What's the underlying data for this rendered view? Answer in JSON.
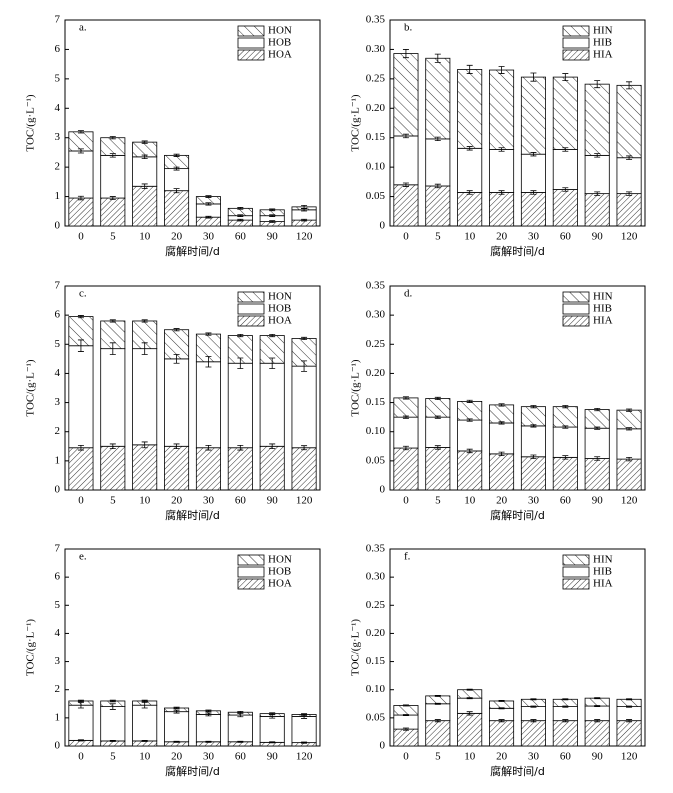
{
  "chart_data": [
    {
      "type": "bar",
      "stacked": true,
      "label": "a.",
      "xlabel": "腐解时间/d",
      "ylabel": "TOC/(g·L⁻¹)",
      "categories": [
        "0",
        "5",
        "10",
        "20",
        "30",
        "60",
        "90",
        "120"
      ],
      "ylim": [
        0,
        7
      ],
      "yticks": [
        0,
        1,
        2,
        3,
        4,
        5,
        6,
        7
      ],
      "legend": "upper right",
      "series": [
        {
          "name": "HOA",
          "color": "#000000",
          "hatch": "forward",
          "values": [
            0.95,
            0.95,
            1.35,
            1.2,
            0.3,
            0.2,
            0.15,
            0.2
          ],
          "errors": [
            0.06,
            0.05,
            0.08,
            0.07,
            0.03,
            0.03,
            0.03,
            0.03
          ]
        },
        {
          "name": "HOB",
          "color": "#000000",
          "hatch": "none",
          "values": [
            1.6,
            1.45,
            1.0,
            0.75,
            0.45,
            0.15,
            0.2,
            0.35
          ],
          "errors": [
            0.07,
            0.06,
            0.06,
            0.05,
            0.04,
            0.03,
            0.03,
            0.04
          ]
        },
        {
          "name": "HON",
          "color": "#000000",
          "hatch": "back",
          "values": [
            0.65,
            0.6,
            0.5,
            0.45,
            0.25,
            0.25,
            0.2,
            0.1
          ],
          "errors": [
            0.04,
            0.04,
            0.04,
            0.04,
            0.03,
            0.03,
            0.03,
            0.05
          ]
        }
      ]
    },
    {
      "type": "bar",
      "stacked": true,
      "label": "b.",
      "xlabel": "腐解时间/d",
      "ylabel": "TOC/(g·L⁻¹)",
      "categories": [
        "0",
        "5",
        "10",
        "20",
        "30",
        "60",
        "90",
        "120"
      ],
      "ylim": [
        0,
        0.35
      ],
      "yticks": [
        0,
        0.05,
        {
          "value": 0.1,
          "label": "0.10"
        },
        0.15,
        {
          "value": 0.2,
          "label": "0.20"
        },
        0.25,
        {
          "value": 0.3,
          "label": "0.30"
        },
        0.35
      ],
      "legend": "upper right",
      "series": [
        {
          "name": "HIA",
          "color": "#000000",
          "hatch": "forward",
          "values": [
            0.07,
            0.068,
            0.057,
            0.057,
            0.057,
            0.062,
            0.055,
            0.055
          ],
          "errors": [
            0.003,
            0.003,
            0.003,
            0.003,
            0.003,
            0.003,
            0.003,
            0.003
          ]
        },
        {
          "name": "HIB",
          "color": "#000000",
          "hatch": "none",
          "values": [
            0.083,
            0.08,
            0.075,
            0.073,
            0.065,
            0.068,
            0.065,
            0.061
          ],
          "errors": [
            0.003,
            0.003,
            0.003,
            0.003,
            0.003,
            0.003,
            0.003,
            0.003
          ]
        },
        {
          "name": "HIN",
          "color": "#000000",
          "hatch": "back",
          "values": [
            0.14,
            0.137,
            0.134,
            0.135,
            0.131,
            0.123,
            0.121,
            0.123
          ],
          "errors": [
            0.007,
            0.007,
            0.007,
            0.006,
            0.007,
            0.006,
            0.006,
            0.006
          ]
        }
      ]
    },
    {
      "type": "bar",
      "stacked": true,
      "label": "c.",
      "xlabel": "腐解时间/d",
      "ylabel": "TOC/(g·L⁻¹)",
      "categories": [
        "0",
        "5",
        "10",
        "20",
        "30",
        "60",
        "90",
        "120"
      ],
      "ylim": [
        0,
        7
      ],
      "yticks": [
        0,
        1,
        2,
        3,
        4,
        5,
        6,
        7
      ],
      "legend": "upper right",
      "series": [
        {
          "name": "HOA",
          "color": "#000000",
          "hatch": "forward",
          "values": [
            1.45,
            1.5,
            1.55,
            1.5,
            1.45,
            1.45,
            1.5,
            1.45
          ],
          "errors": [
            0.08,
            0.08,
            0.1,
            0.08,
            0.08,
            0.08,
            0.08,
            0.07
          ]
        },
        {
          "name": "HOB",
          "color": "#000000",
          "hatch": "none",
          "values": [
            3.5,
            3.35,
            3.3,
            3.0,
            2.95,
            2.9,
            2.85,
            2.8
          ],
          "errors": [
            0.2,
            0.2,
            0.2,
            0.15,
            0.18,
            0.18,
            0.18,
            0.18
          ]
        },
        {
          "name": "HON",
          "color": "#000000",
          "hatch": "back",
          "values": [
            1.0,
            0.95,
            0.95,
            1.0,
            0.95,
            0.95,
            0.95,
            0.95
          ],
          "errors": [
            0.04,
            0.04,
            0.04,
            0.04,
            0.04,
            0.04,
            0.04,
            0.04
          ]
        }
      ]
    },
    {
      "type": "bar",
      "stacked": true,
      "label": "d.",
      "xlabel": "腐解时间/d",
      "ylabel": "TOC/(g·L⁻¹)",
      "categories": [
        "0",
        "5",
        "10",
        "20",
        "30",
        "60",
        "90",
        "120"
      ],
      "ylim": [
        0,
        0.35
      ],
      "yticks": [
        0,
        0.05,
        {
          "value": 0.1,
          "label": "0.10"
        },
        0.15,
        {
          "value": 0.2,
          "label": "0.20"
        },
        0.25,
        {
          "value": 0.3,
          "label": "0.30"
        },
        0.35
      ],
      "legend": "upper right",
      "series": [
        {
          "name": "HIA",
          "color": "#000000",
          "hatch": "forward",
          "values": [
            0.072,
            0.073,
            0.067,
            0.062,
            0.057,
            0.056,
            0.054,
            0.053
          ],
          "errors": [
            0.003,
            0.003,
            0.003,
            0.003,
            0.003,
            0.003,
            0.003,
            0.003
          ]
        },
        {
          "name": "HIB",
          "color": "#000000",
          "hatch": "none",
          "values": [
            0.053,
            0.052,
            0.053,
            0.053,
            0.053,
            0.052,
            0.052,
            0.052
          ],
          "errors": [
            0.002,
            0.002,
            0.002,
            0.002,
            0.002,
            0.002,
            0.002,
            0.002
          ]
        },
        {
          "name": "HIN",
          "color": "#000000",
          "hatch": "back",
          "values": [
            0.033,
            0.032,
            0.032,
            0.031,
            0.033,
            0.035,
            0.032,
            0.032
          ],
          "errors": [
            0.002,
            0.002,
            0.002,
            0.002,
            0.002,
            0.002,
            0.002,
            0.002
          ]
        }
      ]
    },
    {
      "type": "bar",
      "stacked": true,
      "label": "e.",
      "xlabel": "腐解时间/d",
      "ylabel": "TOC/(g·L⁻¹)",
      "categories": [
        "0",
        "5",
        "10",
        "20",
        "30",
        "60",
        "90",
        "120"
      ],
      "ylim": [
        0,
        7
      ],
      "yticks": [
        0,
        1,
        2,
        3,
        4,
        5,
        6,
        7
      ],
      "legend": "upper right",
      "series": [
        {
          "name": "HOA",
          "color": "#000000",
          "hatch": "forward",
          "values": [
            0.2,
            0.18,
            0.18,
            0.15,
            0.15,
            0.15,
            0.13,
            0.12
          ],
          "errors": [
            0.02,
            0.02,
            0.02,
            0.02,
            0.02,
            0.02,
            0.02,
            0.02
          ]
        },
        {
          "name": "HOB",
          "color": "#000000",
          "hatch": "none",
          "values": [
            1.25,
            1.22,
            1.27,
            1.07,
            0.97,
            0.95,
            0.92,
            0.93
          ],
          "errors": [
            0.1,
            0.1,
            0.1,
            0.05,
            0.05,
            0.06,
            0.06,
            0.07
          ]
        },
        {
          "name": "HON",
          "color": "#000000",
          "hatch": "back",
          "values": [
            0.15,
            0.2,
            0.15,
            0.13,
            0.13,
            0.1,
            0.1,
            0.07
          ],
          "errors": [
            0.03,
            0.03,
            0.03,
            0.03,
            0.03,
            0.03,
            0.03,
            0.03
          ]
        }
      ]
    },
    {
      "type": "bar",
      "stacked": true,
      "label": "f.",
      "xlabel": "腐解时间/d",
      "ylabel": "TOC/(g·L⁻¹)",
      "categories": [
        "0",
        "5",
        "10",
        "20",
        "30",
        "60",
        "90",
        "120"
      ],
      "ylim": [
        0,
        0.35
      ],
      "yticks": [
        0,
        0.05,
        {
          "value": 0.1,
          "label": "0.10"
        },
        0.15,
        {
          "value": 0.2,
          "label": "0.20"
        },
        0.25,
        {
          "value": 0.3,
          "label": "0.30"
        },
        0.35
      ],
      "legend": "upper right",
      "series": [
        {
          "name": "HIA",
          "color": "#000000",
          "hatch": "forward",
          "values": [
            0.03,
            0.045,
            0.058,
            0.045,
            0.045,
            0.045,
            0.045,
            0.045
          ],
          "errors": [
            0.002,
            0.002,
            0.003,
            0.002,
            0.002,
            0.002,
            0.002,
            0.002
          ]
        },
        {
          "name": "HIB",
          "color": "#000000",
          "hatch": "none",
          "values": [
            0.025,
            0.03,
            0.027,
            0.022,
            0.025,
            0.025,
            0.026,
            0.025
          ],
          "errors": [
            0.001,
            0.001,
            0.001,
            0.001,
            0.001,
            0.001,
            0.001,
            0.001
          ]
        },
        {
          "name": "HIN",
          "color": "#000000",
          "hatch": "back",
          "values": [
            0.017,
            0.014,
            0.015,
            0.013,
            0.013,
            0.013,
            0.014,
            0.013
          ],
          "errors": [
            0.001,
            0.001,
            0.001,
            0.001,
            0.001,
            0.001,
            0.001,
            0.001
          ]
        }
      ]
    }
  ]
}
